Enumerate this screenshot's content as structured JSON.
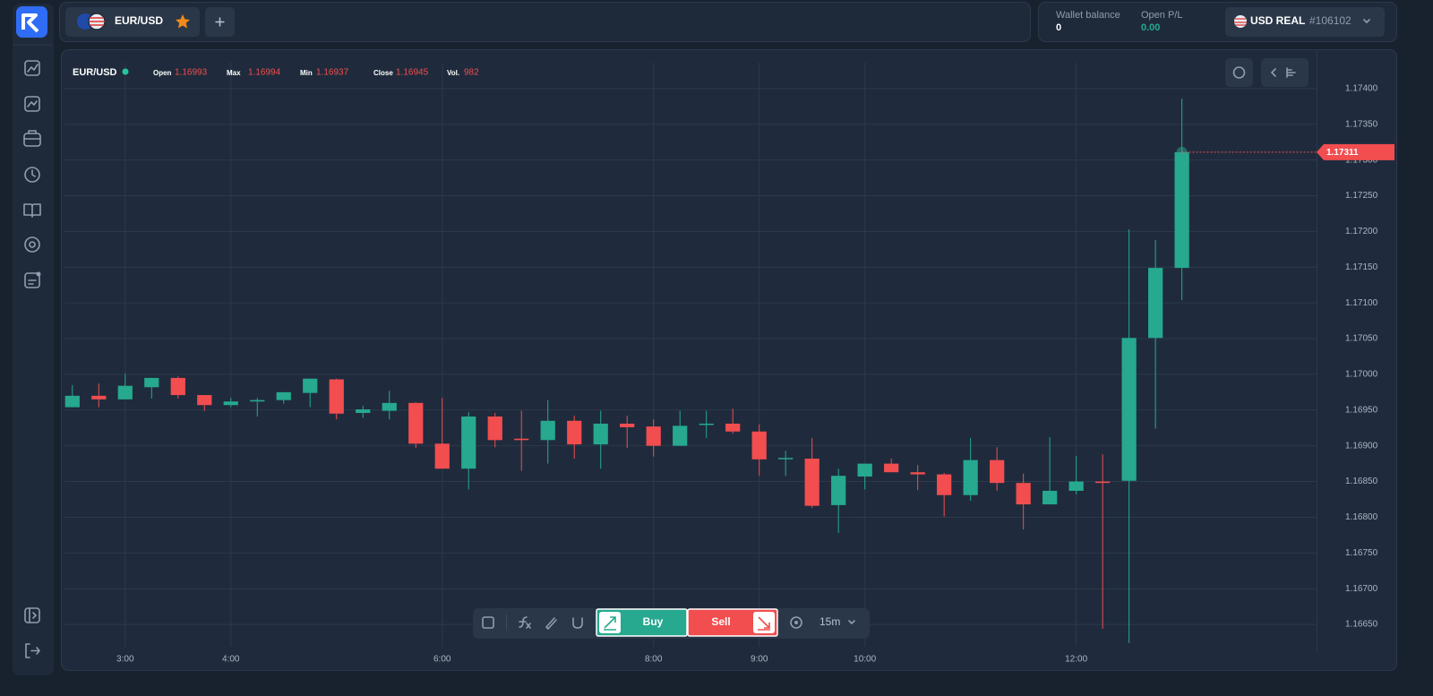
{
  "header": {
    "pair": "EUR/USD",
    "wallet_label": "Wallet balance",
    "wallet_value": "0",
    "pl_label": "Open P/L",
    "pl_value": "0.00",
    "account": "USD REAL",
    "account_id": "#106102"
  },
  "chart_data": {
    "type": "candlestick",
    "symbol": "EUR/USD",
    "info": [
      {
        "label": "Open",
        "value": "1.16993"
      },
      {
        "label": "Max",
        "value": "1.16994"
      },
      {
        "label": "Min",
        "value": "1.16937"
      },
      {
        "label": "Close",
        "value": "1.16945"
      },
      {
        "label": "Vol.",
        "value": "982"
      }
    ],
    "x": [
      2.5,
      2.75,
      3,
      3.25,
      3.5,
      3.75,
      4,
      4.25,
      4.5,
      4.75,
      5,
      5.25,
      5.5,
      5.75,
      6,
      6.25,
      6.5,
      6.75,
      7,
      7.25,
      7.5,
      7.75,
      8,
      8.25,
      8.5,
      8.75,
      9,
      9.25,
      9.5,
      9.75,
      10,
      10.25,
      10.5,
      10.75,
      11,
      11.25,
      11.5,
      11.75,
      12,
      12.25,
      12.5,
      12.75,
      13
    ],
    "open": [
      1.16954,
      1.1697,
      1.16965,
      1.16982,
      1.16995,
      1.16971,
      1.16957,
      1.16962,
      1.16964,
      1.16974,
      1.16993,
      1.16946,
      1.16949,
      1.1696,
      1.16903,
      1.16868,
      1.16941,
      1.1691,
      1.16908,
      1.16935,
      1.16902,
      1.16931,
      1.16927,
      1.169,
      1.1693,
      1.16931,
      1.1692,
      1.16882,
      1.16882,
      1.16817,
      1.16857,
      1.16875,
      1.16863,
      1.1686,
      1.16831,
      1.1688,
      1.16848,
      1.16818,
      1.16837,
      1.1685,
      1.16851,
      1.17051,
      1.17149
    ],
    "high": [
      1.16985,
      1.16987,
      1.17001,
      1.16995,
      1.16997,
      1.16971,
      1.16967,
      1.16967,
      1.16975,
      1.16994,
      1.16994,
      1.16956,
      1.16977,
      1.16961,
      1.16967,
      1.16947,
      1.16946,
      1.16949,
      1.16964,
      1.16942,
      1.16949,
      1.16942,
      1.16937,
      1.16949,
      1.16949,
      1.16952,
      1.1693,
      1.16893,
      1.16911,
      1.16868,
      1.16875,
      1.16882,
      1.16873,
      1.16862,
      1.16911,
      1.16898,
      1.16861,
      1.16912,
      1.16886,
      1.16888,
      1.17203,
      1.17188,
      1.17386
    ],
    "low": [
      1.16954,
      1.16954,
      1.16965,
      1.16966,
      1.16966,
      1.16949,
      1.16954,
      1.16941,
      1.16959,
      1.16954,
      1.16937,
      1.16939,
      1.16937,
      1.16897,
      1.16868,
      1.16839,
      1.16898,
      1.16865,
      1.16875,
      1.16882,
      1.16868,
      1.16897,
      1.16885,
      1.169,
      1.16911,
      1.16917,
      1.16858,
      1.16858,
      1.16813,
      1.16778,
      1.16839,
      1.16863,
      1.16838,
      1.16801,
      1.16823,
      1.16837,
      1.16783,
      1.16818,
      1.16832,
      1.16644,
      1.16624,
      1.16924,
      1.17104
    ],
    "close": [
      1.1697,
      1.16965,
      1.16984,
      1.16995,
      1.16971,
      1.16957,
      1.16962,
      1.16964,
      1.16975,
      1.16994,
      1.16945,
      1.16951,
      1.1696,
      1.16903,
      1.16868,
      1.16941,
      1.16908,
      1.16908,
      1.16935,
      1.16902,
      1.16931,
      1.16926,
      1.169,
      1.16928,
      1.16931,
      1.1692,
      1.16881,
      1.16883,
      1.16816,
      1.16858,
      1.16875,
      1.16863,
      1.1686,
      1.16831,
      1.1688,
      1.16848,
      1.16818,
      1.16837,
      1.1685,
      1.16848,
      1.17051,
      1.17149,
      1.17311
    ],
    "up_color": "#26a98f",
    "down_color": "#f24d4f",
    "current_price": 1.17311,
    "xlim": [
      2.4,
      14.3
    ],
    "xticks": [
      {
        "value": 3,
        "label": "3:00"
      },
      {
        "value": 4,
        "label": "4:00"
      },
      {
        "value": 6,
        "label": "6:00"
      },
      {
        "value": 8,
        "label": "8:00"
      },
      {
        "value": 9,
        "label": "9:00"
      },
      {
        "value": 10,
        "label": "10:00"
      },
      {
        "value": 12,
        "label": "12:00"
      }
    ],
    "ylim": [
      1.1662,
      1.1744
    ],
    "yticks": [
      {
        "value": 1.174,
        "label": "1.17400"
      },
      {
        "value": 1.1735,
        "label": "1.17350"
      },
      {
        "value": 1.173,
        "label": "1.17300"
      },
      {
        "value": 1.1725,
        "label": "1.17250"
      },
      {
        "value": 1.172,
        "label": "1.17200"
      },
      {
        "value": 1.1715,
        "label": "1.17150"
      },
      {
        "value": 1.171,
        "label": "1.17100"
      },
      {
        "value": 1.1705,
        "label": "1.17050"
      },
      {
        "value": 1.17,
        "label": "1.17000"
      },
      {
        "value": 1.1695,
        "label": "1.16950"
      },
      {
        "value": 1.169,
        "label": "1.16900"
      },
      {
        "value": 1.1685,
        "label": "1.16850"
      },
      {
        "value": 1.168,
        "label": "1.16800"
      },
      {
        "value": 1.1675,
        "label": "1.16750"
      },
      {
        "value": 1.167,
        "label": "1.16700"
      },
      {
        "value": 1.1665,
        "label": "1.16650"
      }
    ],
    "grid": true
  },
  "toolbar": {
    "buy": "Buy",
    "sell": "Sell",
    "timeframe": "15m"
  }
}
